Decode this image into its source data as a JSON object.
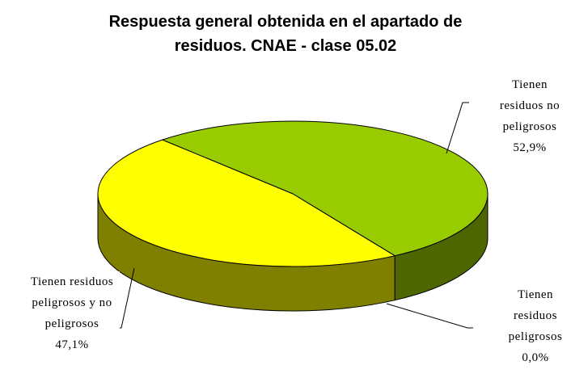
{
  "chart_data": {
    "type": "pie3d",
    "title": "Respuesta general obtenida en el apartado de residuos. CNAE - clase 05.02",
    "categories": [
      "Tienen residuos no peligrosos",
      "Tienen residuos peligrosos",
      "Tienen residuos peligrosos y no peligrosos"
    ],
    "values": [
      52.9,
      0.0,
      47.1
    ],
    "value_labels": [
      "52,9%",
      "0,0%",
      "47,1%"
    ],
    "colors": [
      "#99cc00",
      "#993366",
      "#ffff00"
    ]
  }
}
